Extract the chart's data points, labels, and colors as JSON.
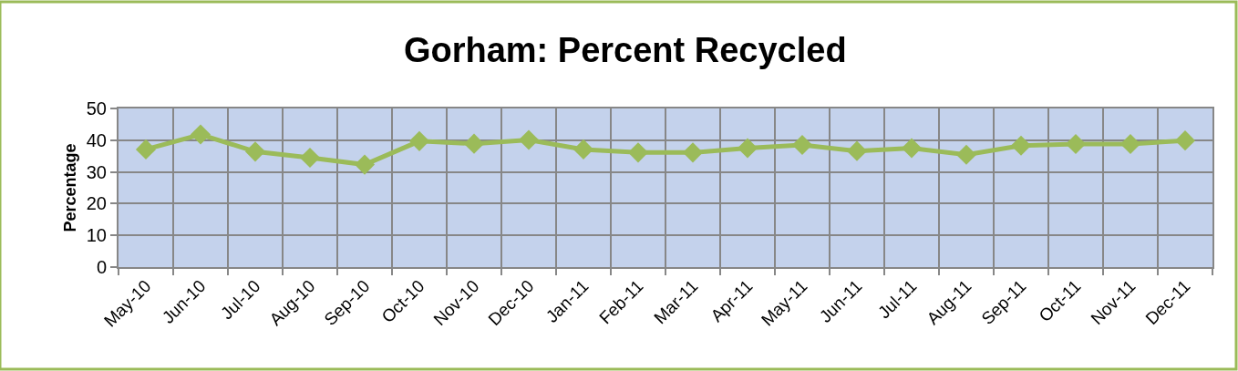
{
  "chart_data": {
    "type": "line",
    "title": "Gorham: Percent Recycled",
    "ylabel": "Percentage",
    "categories": [
      "May-10",
      "Jun-10",
      "Jul-10",
      "Aug-10",
      "Sep-10",
      "Oct-10",
      "Nov-10",
      "Dec-10",
      "Jan-11",
      "Feb-11",
      "Mar-11",
      "Apr-11",
      "May-11",
      "Jun-11",
      "Jul-11",
      "Aug-11",
      "Sep-11",
      "Oct-11",
      "Nov-11",
      "Dec-11"
    ],
    "series": [
      {
        "color": "#9bbb59",
        "values": [
          37.1,
          41.8,
          36.4,
          34.5,
          32.3,
          39.7,
          38.9,
          40.1,
          37.1,
          36.1,
          36.1,
          37.5,
          38.5,
          36.6,
          37.5,
          35.4,
          38.3,
          38.8,
          38.8,
          39.9
        ]
      }
    ],
    "ylim": [
      0,
      50
    ],
    "yticks": [
      0,
      10,
      20,
      30,
      40,
      50
    ],
    "grid": true,
    "marker": "diamond",
    "line_style": "solid"
  }
}
